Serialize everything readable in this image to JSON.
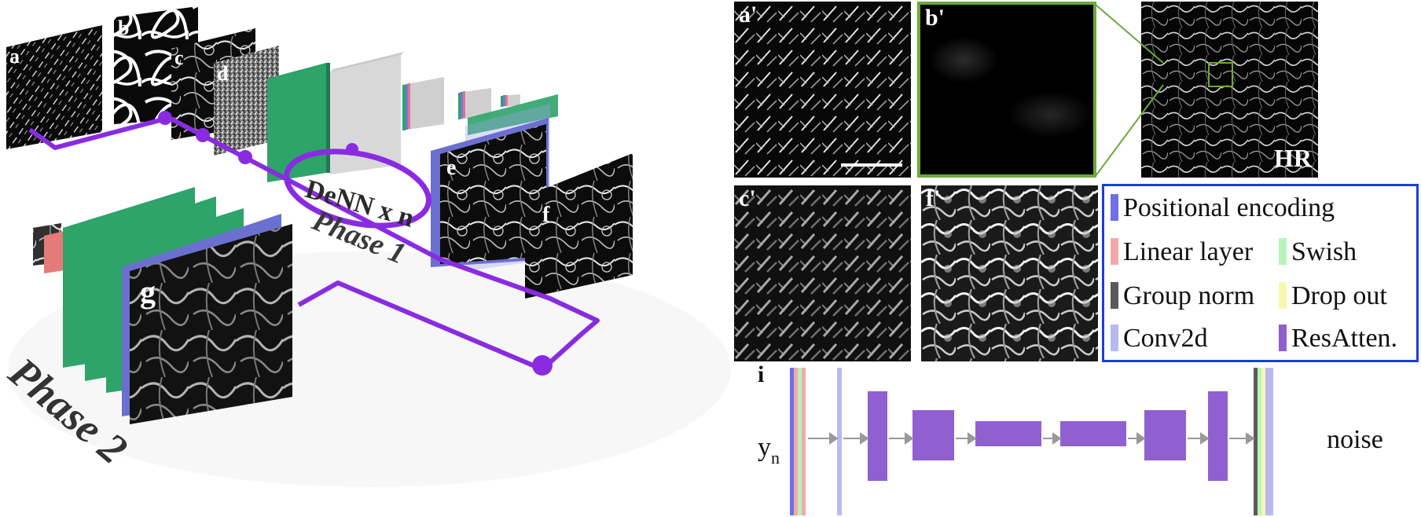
{
  "left_figure": {
    "phase1_label": "Phase 1",
    "phase2_label": "Phase 2",
    "loop_label": "DeNN x n",
    "panel_letters": [
      "a",
      "b",
      "c",
      "d",
      "e",
      "f",
      "g"
    ]
  },
  "right_figure": {
    "panels": [
      {
        "id": "a-prime",
        "label": "a'"
      },
      {
        "id": "b-prime",
        "label": "b'"
      },
      {
        "id": "hr",
        "label": "HR"
      },
      {
        "id": "c-prime",
        "label": "c'"
      },
      {
        "id": "f-prime",
        "label": "f'"
      }
    ],
    "legend": [
      {
        "label": "Positional encoding",
        "color": "#6f6fe8"
      },
      {
        "label": "Linear layer",
        "color": "#f4a9a9"
      },
      {
        "label": "Swish",
        "color": "#b8f4b8"
      },
      {
        "label": "Group norm",
        "color": "#5a5a5a"
      },
      {
        "label": "Drop out",
        "color": "#f7f7b0"
      },
      {
        "label": "Conv2d",
        "color": "#b9b9f2"
      },
      {
        "label": "ResAtten.",
        "color": "#9060d0"
      }
    ],
    "legend_border_color": "#1a3fd6",
    "inset_border_color": "#6aaa3a",
    "network": {
      "panel_label": "i",
      "input_label": "y",
      "input_subscript": "n",
      "output_label": "noise"
    }
  }
}
